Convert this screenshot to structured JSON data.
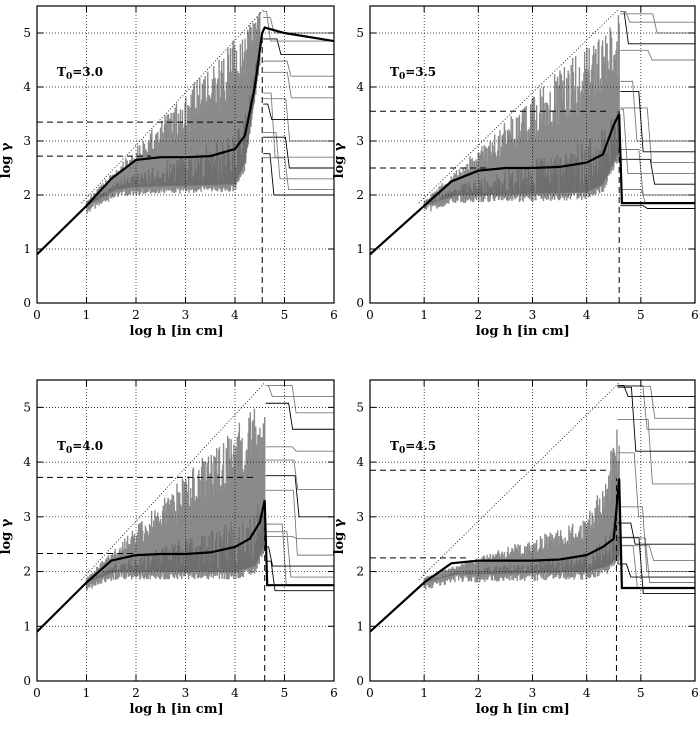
{
  "chart_data": [
    {
      "type": "line",
      "panel_label": "T",
      "panel_label_sub": "0",
      "panel_label_value": "=3.0",
      "xlabel": "log h [in cm]",
      "ylabel": "log γ",
      "xlim": [
        0,
        6
      ],
      "ylim": [
        0,
        5.5
      ],
      "xticks": [
        0,
        1,
        2,
        3,
        4,
        5,
        6
      ],
      "yticks": [
        0,
        1,
        2,
        3,
        4,
        5
      ],
      "grid": true,
      "median_curve": {
        "x": [
          0,
          1.0,
          1.5,
          2.0,
          2.5,
          3.0,
          3.5,
          4.0,
          4.2,
          4.4,
          4.55,
          4.6,
          4.8,
          5.0,
          6.0
        ],
        "y": [
          0.9,
          1.8,
          2.3,
          2.65,
          2.7,
          2.7,
          2.72,
          2.85,
          3.1,
          4.0,
          5.0,
          5.1,
          5.05,
          5.0,
          4.85
        ]
      },
      "upper_envelope": {
        "x": [
          1.0,
          4.5,
          6.0
        ],
        "y": [
          1.9,
          5.4,
          5.4
        ]
      },
      "lower_envelope": {
        "x": [
          1.0,
          1.6,
          2.0,
          4.0,
          4.2,
          4.5
        ],
        "y": [
          1.8,
          2.1,
          2.15,
          2.2,
          2.6,
          4.5
        ]
      },
      "dashed_upper": {
        "x": [
          0,
          4.2
        ],
        "y": [
          3.35,
          3.35
        ]
      },
      "dashed_lower": {
        "x": [
          0,
          2.3
        ],
        "y": [
          2.72,
          2.72
        ]
      },
      "dashed_vertical": {
        "x": 4.55,
        "y": [
          0,
          5.0
        ]
      },
      "tail_levels": [
        2.0,
        2.1,
        2.3,
        2.5,
        2.7,
        3.0,
        3.4,
        3.8,
        4.2,
        4.6,
        4.85,
        5.0
      ]
    },
    {
      "type": "line",
      "panel_label": "T",
      "panel_label_sub": "0",
      "panel_label_value": "=3.5",
      "xlabel": "log h [in cm]",
      "ylabel": "log γ",
      "xlim": [
        0,
        6
      ],
      "ylim": [
        0,
        5.5
      ],
      "xticks": [
        0,
        1,
        2,
        3,
        4,
        5,
        6
      ],
      "yticks": [
        0,
        1,
        2,
        3,
        4,
        5
      ],
      "grid": true,
      "median_curve": {
        "x": [
          0,
          1.0,
          1.5,
          2.0,
          2.5,
          3.0,
          3.5,
          4.0,
          4.3,
          4.5,
          4.6,
          4.65,
          6.0
        ],
        "y": [
          0.9,
          1.8,
          2.25,
          2.45,
          2.5,
          2.5,
          2.52,
          2.6,
          2.75,
          3.3,
          3.5,
          1.85,
          1.85
        ]
      },
      "upper_envelope": {
        "x": [
          1.0,
          4.6,
          6.0
        ],
        "y": [
          1.9,
          5.4,
          5.4
        ]
      },
      "lower_envelope": {
        "x": [
          1.0,
          1.6,
          2.0,
          4.0,
          4.3,
          4.6
        ],
        "y": [
          1.8,
          2.0,
          2.0,
          2.05,
          2.2,
          2.8
        ]
      },
      "dashed_upper": {
        "x": [
          0,
          4.4
        ],
        "y": [
          3.55,
          3.55
        ]
      },
      "dashed_lower": {
        "x": [
          0,
          2.2
        ],
        "y": [
          2.5,
          2.5
        ]
      },
      "dashed_vertical": {
        "x": 4.6,
        "y": [
          0,
          3.55
        ]
      },
      "tail_levels": [
        1.75,
        1.85,
        2.0,
        2.2,
        2.4,
        2.6,
        2.8,
        3.0,
        4.5,
        4.8,
        5.0,
        5.2
      ]
    },
    {
      "type": "line",
      "panel_label": "T",
      "panel_label_sub": "0",
      "panel_label_value": "=4.0",
      "xlabel": "log h [in cm]",
      "ylabel": "log γ",
      "xlim": [
        0,
        6
      ],
      "ylim": [
        0,
        5.5
      ],
      "xticks": [
        0,
        1,
        2,
        3,
        4,
        5,
        6
      ],
      "yticks": [
        0,
        1,
        2,
        3,
        4,
        5
      ],
      "grid": true,
      "median_curve": {
        "x": [
          0,
          1.0,
          1.5,
          2.0,
          2.5,
          3.0,
          3.5,
          4.0,
          4.3,
          4.5,
          4.6,
          4.65,
          6.0
        ],
        "y": [
          0.9,
          1.8,
          2.2,
          2.3,
          2.32,
          2.32,
          2.35,
          2.45,
          2.6,
          2.9,
          3.3,
          1.75,
          1.75
        ]
      },
      "upper_envelope": {
        "x": [
          1.0,
          4.7,
          6.0
        ],
        "y": [
          1.9,
          5.35,
          5.35
        ]
      },
      "lower_envelope": {
        "x": [
          1.0,
          1.6,
          2.0,
          4.0,
          4.4,
          4.6
        ],
        "y": [
          1.8,
          2.0,
          2.0,
          2.0,
          2.1,
          2.5
        ]
      },
      "dashed_upper": {
        "x": [
          0,
          4.4
        ],
        "y": [
          3.72,
          3.72
        ]
      },
      "dashed_lower": {
        "x": [
          0,
          2.0
        ],
        "y": [
          2.33,
          2.33
        ]
      },
      "dashed_vertical": {
        "x": 4.6,
        "y": [
          0,
          3.3
        ]
      },
      "tail_levels": [
        1.65,
        1.75,
        1.9,
        2.1,
        2.3,
        2.6,
        3.0,
        3.5,
        4.2,
        4.6,
        4.9,
        5.2
      ]
    },
    {
      "type": "line",
      "panel_label": "T",
      "panel_label_sub": "0",
      "panel_label_value": "=4.5",
      "xlabel": "log h [in cm]",
      "ylabel": "log γ",
      "xlim": [
        0,
        6
      ],
      "ylim": [
        0,
        5.5
      ],
      "xticks": [
        0,
        1,
        2,
        3,
        4,
        5,
        6
      ],
      "yticks": [
        0,
        1,
        2,
        3,
        4,
        5
      ],
      "grid": true,
      "median_curve": {
        "x": [
          0,
          1.0,
          1.5,
          2.0,
          2.5,
          3.0,
          3.5,
          4.0,
          4.3,
          4.5,
          4.6,
          4.65,
          6.0
        ],
        "y": [
          0.9,
          1.8,
          2.15,
          2.2,
          2.2,
          2.2,
          2.22,
          2.3,
          2.45,
          2.6,
          3.7,
          1.7,
          1.7
        ]
      },
      "upper_envelope": {
        "x": [
          1.0,
          3.5,
          4.0,
          4.3,
          4.6,
          4.9,
          5.0
        ],
        "y": [
          1.9,
          2.8,
          3.0,
          3.6,
          4.9,
          4.9,
          4.5
        ]
      },
      "lower_envelope": {
        "x": [
          1.0,
          1.6,
          2.0,
          4.0,
          4.4,
          4.6
        ],
        "y": [
          1.8,
          1.95,
          1.95,
          2.0,
          2.1,
          2.3
        ]
      },
      "dashed_upper": {
        "x": [
          0,
          4.4
        ],
        "y": [
          3.85,
          3.85
        ]
      },
      "dashed_lower": {
        "x": [
          0,
          1.8
        ],
        "y": [
          2.25,
          2.25
        ]
      },
      "dashed_vertical": {
        "x": 4.55,
        "y": [
          0,
          3.7
        ]
      },
      "tail_levels": [
        1.6,
        1.7,
        1.8,
        1.9,
        2.0,
        2.2,
        2.5,
        3.0,
        3.6,
        4.2,
        4.6,
        4.8,
        5.2
      ]
    }
  ],
  "colors": {
    "scatter": "#8a8a8a",
    "tail": "#7a7a7a",
    "median": "#000000",
    "grid": "#000000"
  }
}
